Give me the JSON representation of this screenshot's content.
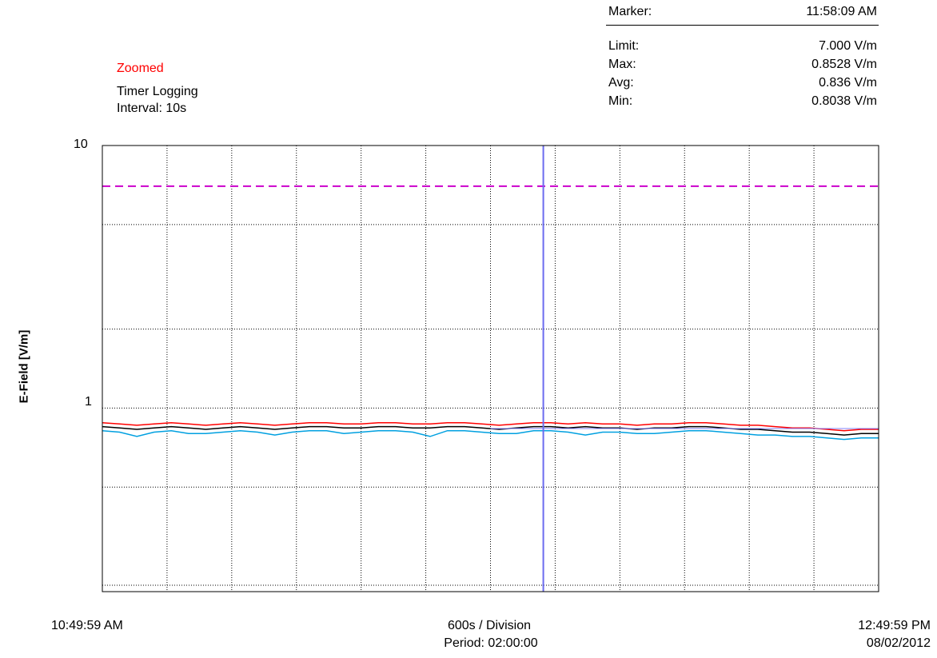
{
  "status": {
    "zoomed": "Zoomed",
    "mode": "Timer Logging",
    "interval": "Interval: 10s"
  },
  "marker": {
    "label": "Marker:",
    "value": "11:58:09 AM"
  },
  "stats": {
    "limit_label": "Limit:",
    "limit_value": "7.000 V/m",
    "max_label": "Max:",
    "max_value": "0.8528 V/m",
    "avg_label": "Avg:",
    "avg_value": "0.836 V/m",
    "min_label": "Min:",
    "min_value": "0.8038 V/m"
  },
  "footer": {
    "start_time": "10:49:59 AM",
    "division": "600s / Division",
    "period": "Period: 02:00:00",
    "end_time": "12:49:59 PM",
    "end_date": "08/02/2012"
  },
  "colors": {
    "limit": "#cc00cc",
    "marker": "#6b6bf0",
    "max_series": "#ff0000",
    "avg_series": "#000000",
    "min_series": "#00a0e0",
    "avg_reference": "#8080ff",
    "grid": "#000000"
  },
  "chart_data": {
    "type": "line",
    "ylabel": "E-Field [V/m]",
    "xlabel": "",
    "y_scale": "log",
    "ylim": [
      0.2,
      10
    ],
    "y_ticks": [
      {
        "value": 10,
        "label": "10"
      },
      {
        "value": 1,
        "label": "1"
      }
    ],
    "x_range": [
      "10:49:59 AM",
      "12:49:59 PM"
    ],
    "x_division_seconds": 600,
    "x_divisions": 12,
    "grid": true,
    "limit_line": 7.0,
    "marker_time": "11:58:09 AM",
    "series": [
      {
        "key": "max",
        "color": "#ff0000",
        "values": [
          0.88,
          0.87,
          0.86,
          0.87,
          0.88,
          0.87,
          0.86,
          0.87,
          0.88,
          0.87,
          0.86,
          0.87,
          0.88,
          0.88,
          0.87,
          0.87,
          0.88,
          0.88,
          0.87,
          0.87,
          0.88,
          0.88,
          0.87,
          0.86,
          0.87,
          0.88,
          0.88,
          0.87,
          0.88,
          0.87,
          0.87,
          0.86,
          0.87,
          0.87,
          0.88,
          0.88,
          0.87,
          0.86,
          0.86,
          0.85,
          0.84,
          0.84,
          0.83,
          0.82,
          0.83,
          0.83
        ]
      },
      {
        "key": "avg",
        "color": "#000000",
        "values": [
          0.85,
          0.84,
          0.83,
          0.84,
          0.85,
          0.84,
          0.83,
          0.84,
          0.85,
          0.84,
          0.83,
          0.84,
          0.85,
          0.85,
          0.84,
          0.84,
          0.85,
          0.85,
          0.84,
          0.84,
          0.85,
          0.85,
          0.84,
          0.83,
          0.84,
          0.85,
          0.85,
          0.84,
          0.85,
          0.84,
          0.84,
          0.83,
          0.84,
          0.84,
          0.85,
          0.85,
          0.84,
          0.83,
          0.83,
          0.82,
          0.81,
          0.81,
          0.8,
          0.79,
          0.8,
          0.8
        ]
      },
      {
        "key": "min",
        "color": "#00a0e0",
        "values": [
          0.82,
          0.81,
          0.78,
          0.81,
          0.82,
          0.8,
          0.8,
          0.81,
          0.82,
          0.81,
          0.79,
          0.81,
          0.82,
          0.82,
          0.8,
          0.81,
          0.82,
          0.82,
          0.81,
          0.78,
          0.82,
          0.82,
          0.81,
          0.8,
          0.8,
          0.82,
          0.82,
          0.81,
          0.79,
          0.81,
          0.81,
          0.8,
          0.8,
          0.81,
          0.82,
          0.82,
          0.81,
          0.8,
          0.79,
          0.79,
          0.78,
          0.78,
          0.77,
          0.76,
          0.77,
          0.77
        ]
      }
    ]
  }
}
